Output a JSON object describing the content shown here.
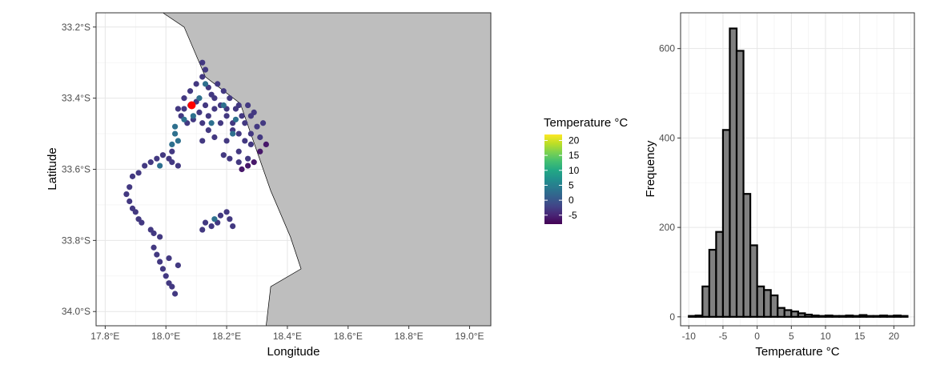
{
  "chart_data": [
    {
      "type": "scatter",
      "title": "",
      "xlabel": "Longitude",
      "ylabel": "Latitude",
      "xlim": [
        17.77,
        19.07
      ],
      "ylim": [
        -34.04,
        -33.16
      ],
      "x_ticks": [
        17.8,
        18.0,
        18.2,
        18.4,
        18.6,
        18.8,
        19.0
      ],
      "x_tick_labels": [
        "17.8°E",
        "18.0°E",
        "18.2°E",
        "18.4°E",
        "18.6°E",
        "18.8°E",
        "19.0°E"
      ],
      "y_ticks": [
        -33.2,
        -33.4,
        -33.6,
        -33.8,
        -34.0
      ],
      "y_tick_labels": [
        "33.2°S",
        "33.4°S",
        "33.6°S",
        "33.8°S",
        "34.0°S"
      ],
      "grid": true,
      "land_color": "#bebebe",
      "highlight_color": "#ff0000",
      "highlight_point": [
        18.085,
        -33.42
      ],
      "land_polygon": [
        [
          17.99,
          -33.16
        ],
        [
          18.06,
          -33.2
        ],
        [
          18.13,
          -33.34
        ],
        [
          18.245,
          -33.415
        ],
        [
          18.3,
          -33.55
        ],
        [
          18.345,
          -33.66
        ],
        [
          18.41,
          -33.79
        ],
        [
          18.445,
          -33.88
        ],
        [
          18.345,
          -33.93
        ],
        [
          18.33,
          -34.04
        ],
        [
          19.07,
          -34.04
        ],
        [
          19.07,
          -33.16
        ]
      ],
      "series": [
        {
          "temperature_c": -3,
          "points": [
            [
              18.04,
              -33.43
            ],
            [
              18.06,
              -33.4
            ],
            [
              18.08,
              -33.38
            ],
            [
              18.1,
              -33.36
            ],
            [
              18.12,
              -33.34
            ],
            [
              18.13,
              -33.32
            ],
            [
              18.12,
              -33.3
            ],
            [
              18.14,
              -33.37
            ],
            [
              18.16,
              -33.4
            ],
            [
              18.18,
              -33.42
            ],
            [
              18.2,
              -33.45
            ],
            [
              18.22,
              -33.47
            ],
            [
              18.24,
              -33.5
            ],
            [
              18.26,
              -33.52
            ],
            [
              18.28,
              -33.5
            ],
            [
              18.3,
              -33.48
            ],
            [
              18.29,
              -33.44
            ],
            [
              18.27,
              -33.42
            ],
            [
              18.25,
              -33.45
            ],
            [
              18.23,
              -33.43
            ],
            [
              18.21,
              -33.4
            ],
            [
              18.19,
              -33.38
            ],
            [
              18.17,
              -33.36
            ],
            [
              18.15,
              -33.39
            ],
            [
              18.13,
              -33.42
            ],
            [
              18.11,
              -33.44
            ],
            [
              18.09,
              -33.46
            ],
            [
              18.07,
              -33.47
            ],
            [
              18.05,
              -33.45
            ],
            [
              18.06,
              -33.43
            ],
            [
              18.1,
              -33.41
            ],
            [
              18.14,
              -33.45
            ],
            [
              18.18,
              -33.47
            ],
            [
              18.22,
              -33.49
            ],
            [
              18.26,
              -33.47
            ],
            [
              18.28,
              -33.45
            ],
            [
              18.24,
              -33.42
            ],
            [
              18.2,
              -33.43
            ],
            [
              18.16,
              -33.43
            ],
            [
              18.12,
              -33.47
            ],
            [
              18.14,
              -33.49
            ],
            [
              18.12,
              -33.52
            ],
            [
              18.16,
              -33.51
            ],
            [
              18.2,
              -33.52
            ],
            [
              18.24,
              -33.55
            ],
            [
              18.21,
              -33.57
            ],
            [
              18.19,
              -33.56
            ],
            [
              18.28,
              -33.53
            ],
            [
              18.31,
              -33.51
            ],
            [
              18.32,
              -33.47
            ],
            [
              18.27,
              -33.57
            ],
            [
              18.24,
              -33.58
            ],
            [
              18.02,
              -33.55
            ],
            [
              18.01,
              -33.57
            ],
            [
              17.99,
              -33.56
            ],
            [
              17.97,
              -33.57
            ],
            [
              17.95,
              -33.58
            ],
            [
              17.93,
              -33.59
            ],
            [
              17.91,
              -33.61
            ],
            [
              17.89,
              -33.62
            ],
            [
              18.04,
              -33.59
            ],
            [
              18.02,
              -33.58
            ],
            [
              17.88,
              -33.65
            ],
            [
              17.87,
              -33.67
            ],
            [
              17.88,
              -33.69
            ],
            [
              17.89,
              -33.71
            ],
            [
              17.9,
              -33.72
            ],
            [
              17.91,
              -33.74
            ],
            [
              17.92,
              -33.75
            ],
            [
              17.95,
              -33.77
            ],
            [
              17.96,
              -33.78
            ],
            [
              17.98,
              -33.79
            ],
            [
              17.96,
              -33.82
            ],
            [
              17.97,
              -33.84
            ],
            [
              17.98,
              -33.86
            ],
            [
              17.99,
              -33.88
            ],
            [
              18.0,
              -33.9
            ],
            [
              18.01,
              -33.92
            ],
            [
              18.02,
              -33.93
            ],
            [
              18.03,
              -33.95
            ],
            [
              18.01,
              -33.85
            ],
            [
              18.04,
              -33.87
            ],
            [
              18.13,
              -33.75
            ],
            [
              18.15,
              -33.76
            ],
            [
              18.17,
              -33.75
            ],
            [
              18.18,
              -33.73
            ],
            [
              18.2,
              -33.72
            ],
            [
              18.21,
              -33.74
            ],
            [
              18.22,
              -33.76
            ],
            [
              18.12,
              -33.77
            ]
          ]
        },
        {
          "temperature_c": 3,
          "points": [
            [
              18.03,
              -33.48
            ],
            [
              18.03,
              -33.5
            ],
            [
              18.04,
              -33.52
            ],
            [
              18.06,
              -33.46
            ],
            [
              18.09,
              -33.45
            ],
            [
              18.11,
              -33.4
            ],
            [
              18.15,
              -33.47
            ],
            [
              18.19,
              -33.42
            ],
            [
              18.13,
              -33.36
            ],
            [
              18.23,
              -33.46
            ],
            [
              18.02,
              -33.53
            ],
            [
              17.98,
              -33.59
            ],
            [
              18.16,
              -33.74
            ],
            [
              18.22,
              -33.5
            ],
            [
              18.08,
              -33.42
            ]
          ]
        },
        {
          "temperature_c": -6,
          "points": [
            [
              18.27,
              -33.59
            ],
            [
              18.25,
              -33.6
            ],
            [
              18.29,
              -33.58
            ],
            [
              18.31,
              -33.55
            ],
            [
              18.33,
              -33.53
            ]
          ]
        }
      ]
    },
    {
      "type": "bar",
      "title": "",
      "xlabel": "Temperature °C",
      "ylabel": "Frequency",
      "xlim": [
        -11.2,
        23.0
      ],
      "ylim": [
        -20,
        680
      ],
      "x_ticks": [
        -10,
        -5,
        0,
        5,
        10,
        15,
        20
      ],
      "y_ticks": [
        0,
        200,
        400,
        600
      ],
      "grid": true,
      "bar_fill": "#808080",
      "bar_stroke": "#000000",
      "bin_width": 1,
      "bin_starts": [
        -10,
        -9,
        -8,
        -7,
        -6,
        -5,
        -4,
        -3,
        -2,
        -1,
        0,
        1,
        2,
        3,
        4,
        5,
        6,
        7,
        8,
        9,
        10,
        11,
        12,
        13,
        14,
        15,
        16,
        17,
        18,
        19,
        20,
        21
      ],
      "values": [
        2,
        3,
        68,
        150,
        190,
        418,
        645,
        595,
        275,
        160,
        68,
        60,
        48,
        20,
        15,
        12,
        8,
        5,
        3,
        2,
        3,
        2,
        2,
        3,
        2,
        4,
        2,
        2,
        3,
        2,
        3,
        2
      ]
    }
  ],
  "legend": {
    "title": "Temperature °C",
    "palette": "viridis",
    "range": [
      -8,
      22
    ],
    "ticks": [
      20,
      15,
      10,
      5,
      0,
      -5
    ]
  }
}
